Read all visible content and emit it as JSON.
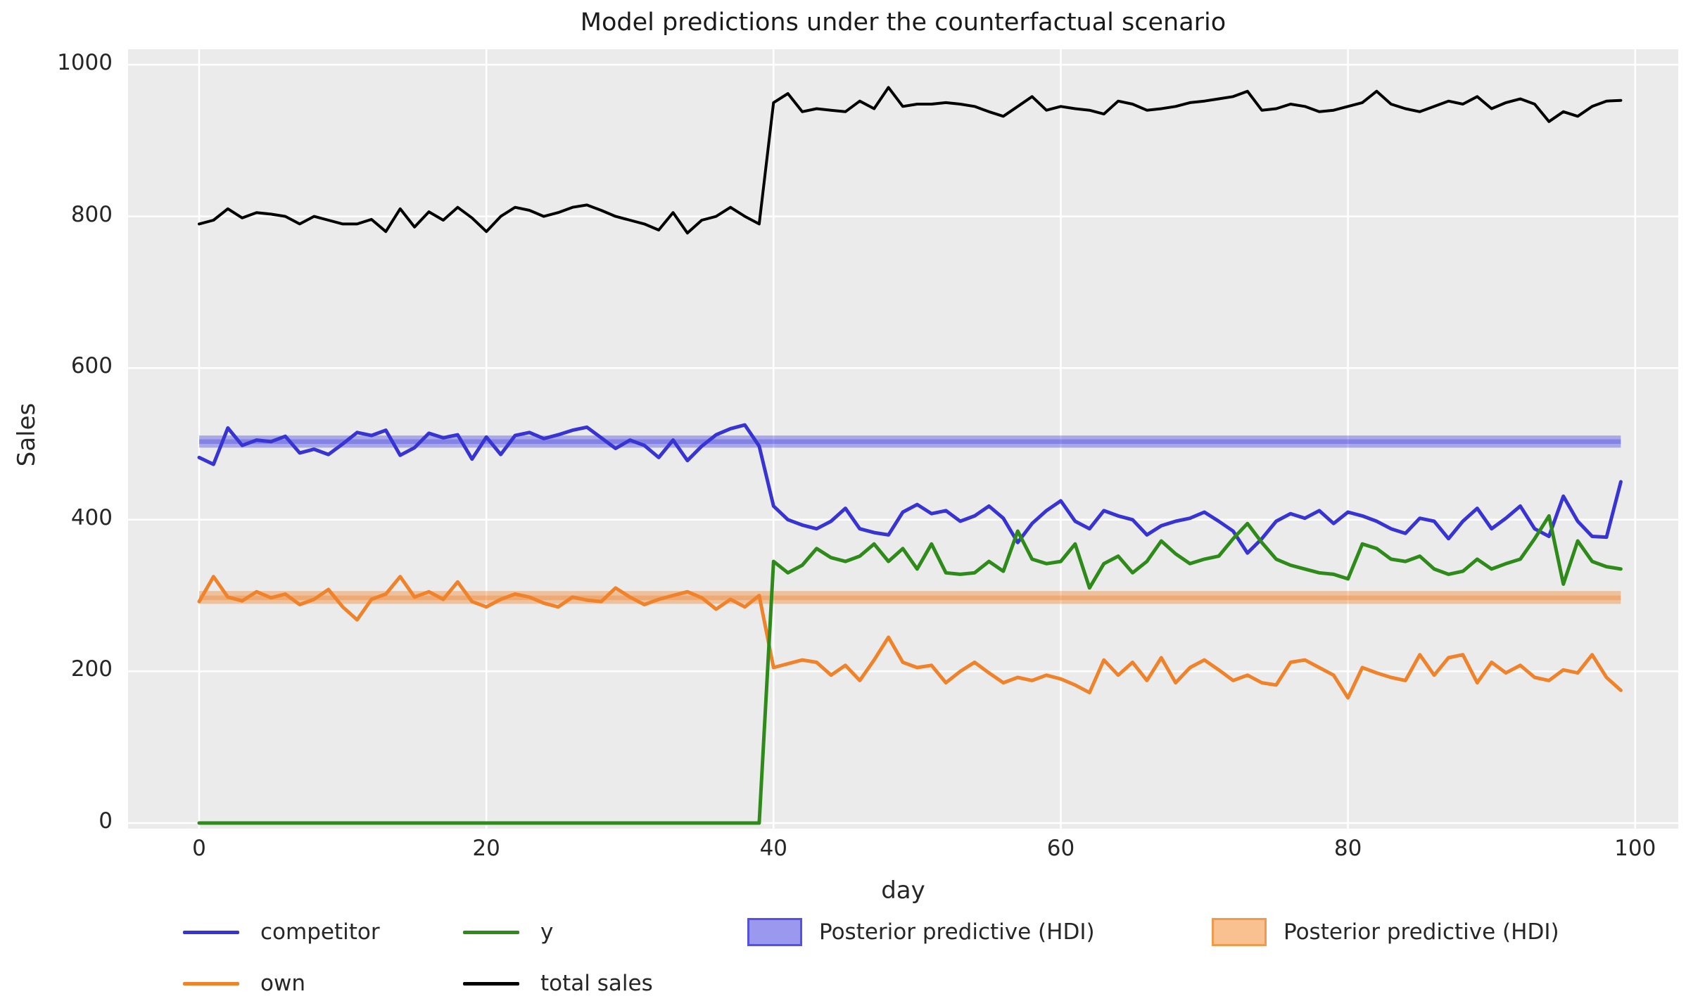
{
  "title": "Model predictions under the counterfactual scenario",
  "colors": {
    "plot_bg": "#ebebeb",
    "grid": "#ffffff",
    "text": "#262626",
    "competitor_line": "#3734d3",
    "own_line": "#f08229",
    "y_line": "#2e8b1a",
    "total_line": "#000000",
    "competitor_hdi_fill": "#4340e0",
    "own_hdi_fill": "#f08229"
  },
  "chart_data": {
    "type": "line",
    "title": "Model predictions under the counterfactual scenario",
    "xlabel": "day",
    "ylabel": "Sales",
    "x_description": "day index 0 through 99, step 1; level shift (intervention) occurs at day 40",
    "x0": 0,
    "dx": 1,
    "xlim": [
      -4.95,
      103.0
    ],
    "ylim": [
      -7.4,
      1020.4
    ],
    "xticks": [
      0,
      20,
      40,
      60,
      80,
      100
    ],
    "yticks": [
      0,
      200,
      400,
      600,
      800,
      1000
    ],
    "grid": true,
    "legend_position": "bottom",
    "series": [
      {
        "name": "competitor",
        "color": "#3734d3",
        "values": [
          482,
          473,
          521,
          498,
          505,
          503,
          510,
          488,
          493,
          486,
          500,
          515,
          511,
          518,
          485,
          495,
          514,
          508,
          512,
          480,
          509,
          486,
          511,
          515,
          507,
          512,
          518,
          522,
          508,
          494,
          505,
          498,
          482,
          505,
          478,
          497,
          512,
          520,
          525,
          497,
          418,
          400,
          393,
          388,
          398,
          415,
          388,
          383,
          380,
          410,
          420,
          408,
          412,
          398,
          405,
          418,
          402,
          370,
          395,
          412,
          425,
          398,
          388,
          412,
          405,
          400,
          380,
          392,
          398,
          402,
          410,
          398,
          385,
          356,
          375,
          398,
          408,
          402,
          412,
          395,
          410,
          405,
          398,
          388,
          382,
          402,
          398,
          375,
          398,
          415,
          388,
          402,
          418,
          388,
          378,
          431,
          398,
          378,
          377,
          450
        ]
      },
      {
        "name": "own",
        "color": "#f08229",
        "values": [
          292,
          325,
          298,
          293,
          305,
          297,
          302,
          288,
          295,
          308,
          285,
          268,
          295,
          302,
          325,
          298,
          305,
          295,
          318,
          292,
          285,
          295,
          302,
          298,
          290,
          285,
          298,
          294,
          292,
          310,
          298,
          288,
          295,
          300,
          305,
          297,
          282,
          295,
          285,
          300,
          205,
          210,
          215,
          212,
          195,
          208,
          188,
          215,
          245,
          212,
          205,
          208,
          185,
          200,
          212,
          198,
          185,
          192,
          188,
          195,
          190,
          182,
          172,
          215,
          195,
          212,
          188,
          218,
          185,
          205,
          215,
          202,
          188,
          195,
          185,
          182,
          212,
          215,
          205,
          195,
          165,
          205,
          198,
          192,
          188,
          222,
          195,
          218,
          222,
          185,
          212,
          198,
          208,
          192,
          188,
          202,
          198,
          222,
          192,
          175
        ]
      },
      {
        "name": "y",
        "color": "#2e8b1a",
        "values": [
          0,
          0,
          0,
          0,
          0,
          0,
          0,
          0,
          0,
          0,
          0,
          0,
          0,
          0,
          0,
          0,
          0,
          0,
          0,
          0,
          0,
          0,
          0,
          0,
          0,
          0,
          0,
          0,
          0,
          0,
          0,
          0,
          0,
          0,
          0,
          0,
          0,
          0,
          0,
          0,
          345,
          330,
          340,
          362,
          350,
          345,
          352,
          368,
          345,
          362,
          335,
          368,
          330,
          328,
          330,
          345,
          332,
          385,
          348,
          342,
          345,
          368,
          310,
          342,
          352,
          330,
          345,
          372,
          355,
          342,
          348,
          352,
          375,
          395,
          370,
          348,
          340,
          335,
          330,
          328,
          322,
          368,
          362,
          348,
          345,
          352,
          335,
          328,
          332,
          348,
          335,
          342,
          348,
          375,
          405,
          315,
          372,
          345,
          338,
          335
        ]
      },
      {
        "name": "total sales",
        "color": "#000000",
        "values": [
          790,
          795,
          810,
          798,
          805,
          803,
          800,
          790,
          800,
          795,
          790,
          790,
          796,
          780,
          810,
          786,
          806,
          795,
          812,
          798,
          780,
          800,
          812,
          808,
          800,
          805,
          812,
          815,
          808,
          800,
          795,
          790,
          782,
          805,
          778,
          795,
          800,
          812,
          800,
          790,
          950,
          962,
          938,
          942,
          940,
          938,
          952,
          942,
          970,
          945,
          948,
          948,
          950,
          948,
          945,
          938,
          932,
          945,
          958,
          940,
          945,
          942,
          940,
          935,
          952,
          948,
          940,
          942,
          945,
          950,
          952,
          955,
          958,
          965,
          940,
          942,
          948,
          945,
          938,
          940,
          945,
          950,
          965,
          948,
          942,
          938,
          945,
          952,
          948,
          958,
          942,
          950,
          955,
          948,
          925,
          938,
          932,
          945,
          952,
          953
        ]
      }
    ],
    "hdi_bands": [
      {
        "name": "Posterior predictive (HDI)",
        "for_series": "competitor",
        "color": "#4340e0",
        "x_start": 0,
        "x_end": 99,
        "lo": 495,
        "hi": 511,
        "core_lo": 500,
        "core_hi": 506
      },
      {
        "name": "Posterior predictive (HDI)",
        "for_series": "own",
        "color": "#f08229",
        "x_start": 0,
        "x_end": 99,
        "lo": 289,
        "hi": 306,
        "core_lo": 294,
        "core_hi": 300
      }
    ]
  },
  "legend": {
    "entries": [
      {
        "label": "competitor",
        "marker": "line",
        "color": "#3734d3"
      },
      {
        "label": "own",
        "marker": "line",
        "color": "#f08229"
      },
      {
        "label": "y",
        "marker": "line",
        "color": "#2e8b1a"
      },
      {
        "label": "total sales",
        "marker": "line",
        "color": "#000000"
      },
      {
        "label": "Posterior predictive (HDI)",
        "marker": "patch",
        "fill": "#9a98ef",
        "border": "#5552dd"
      },
      {
        "label": "Posterior predictive (HDI)",
        "marker": "patch",
        "fill": "#f8c18f",
        "border": "#ef9a4d"
      }
    ]
  }
}
